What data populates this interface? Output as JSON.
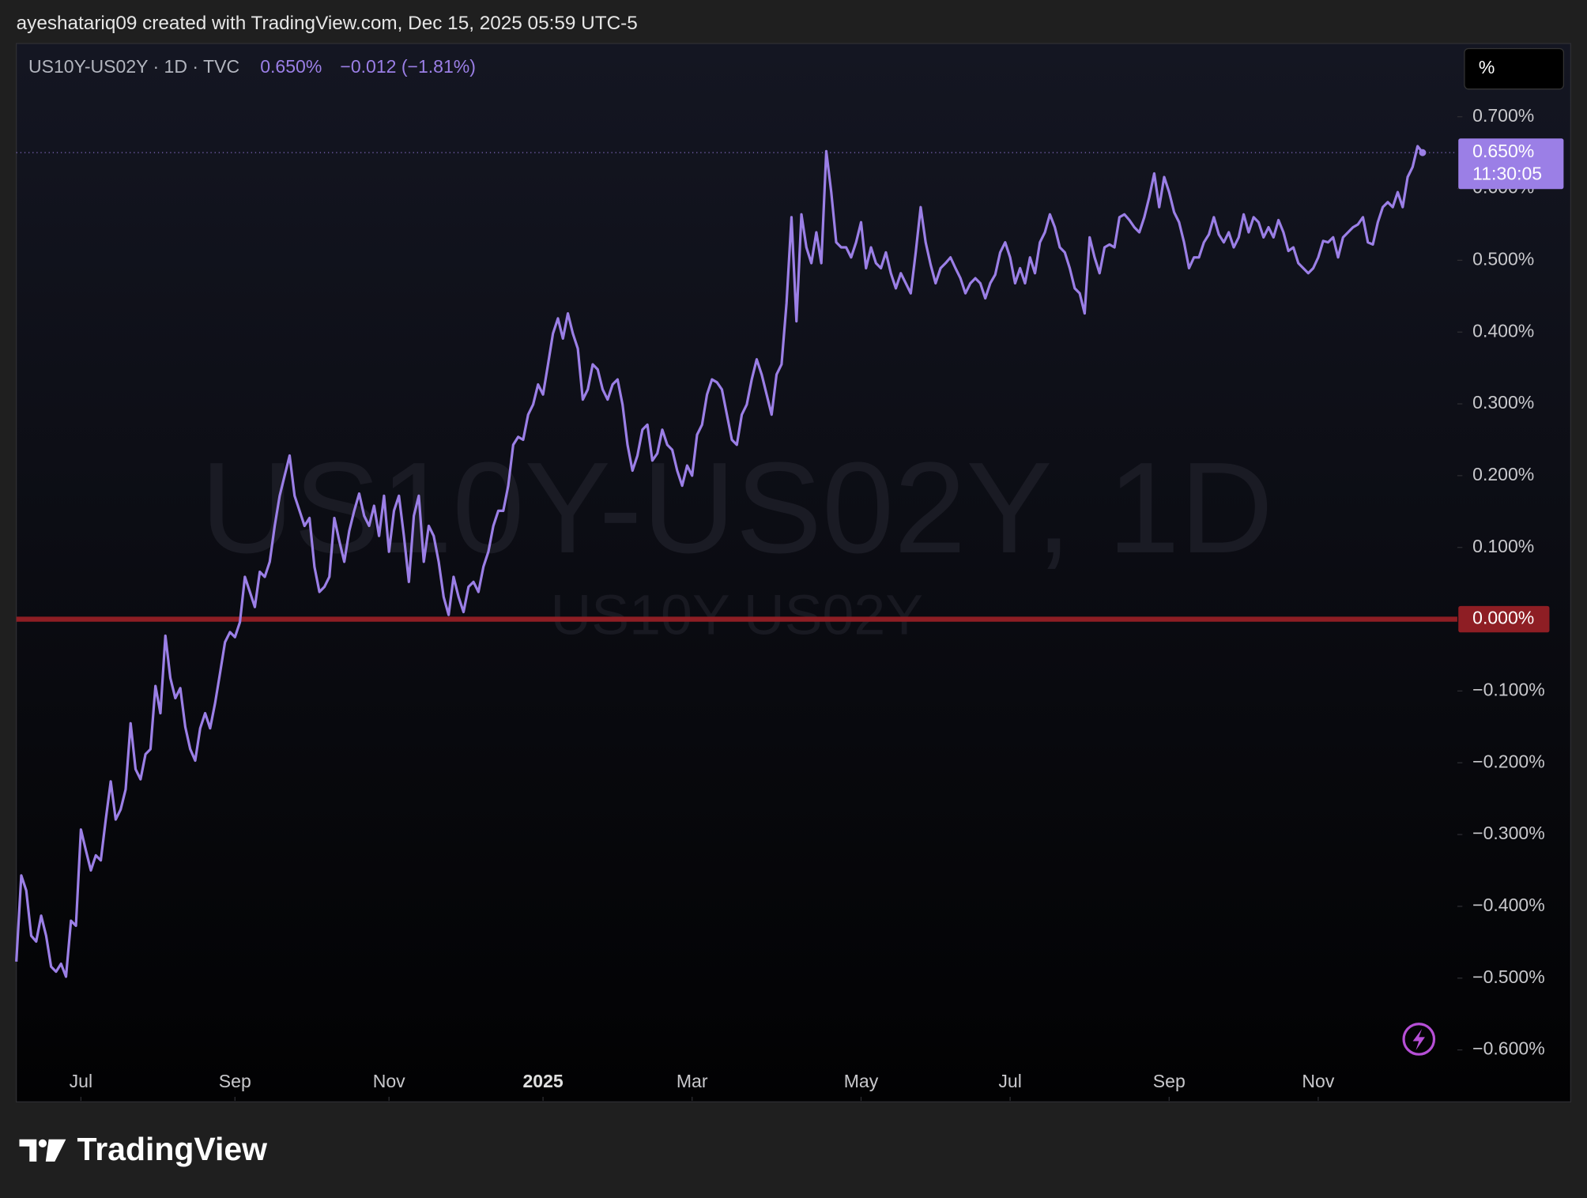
{
  "header": "ayeshatariq09 created with TradingView.com, Dec 15, 2025 05:59 UTC-5",
  "brand": "TradingView",
  "unit_button": "%",
  "chart_data": {
    "type": "line",
    "legend": "US10Y-US02Y · 1D · TVC",
    "change_label": "−0.012 (−1.81%)",
    "watermark": "US10Y-US02Y, 1D",
    "series": [
      {
        "name": "US10Y-US02Y",
        "color": "#9b7fe6",
        "values": [
          -0.477,
          -0.357,
          -0.378,
          -0.441,
          -0.449,
          -0.413,
          -0.441,
          -0.484,
          -0.491,
          -0.48,
          -0.498,
          -0.42,
          -0.427,
          -0.293,
          -0.322,
          -0.35,
          -0.329,
          -0.336,
          -0.279,
          -0.226,
          -0.279,
          -0.265,
          -0.237,
          -0.145,
          -0.209,
          -0.223,
          -0.188,
          -0.181,
          -0.093,
          -0.131,
          -0.023,
          -0.082,
          -0.11,
          -0.096,
          -0.15,
          -0.181,
          -0.197,
          -0.152,
          -0.131,
          -0.152,
          -0.117,
          -0.075,
          -0.032,
          -0.018,
          -0.025,
          -0.004,
          0.059,
          0.038,
          0.017,
          0.066,
          0.059,
          0.08,
          0.13,
          0.172,
          0.2,
          0.228,
          0.172,
          0.151,
          0.13,
          0.141,
          0.073,
          0.038,
          0.045,
          0.059,
          0.141,
          0.109,
          0.08,
          0.123,
          0.151,
          0.175,
          0.144,
          0.13,
          0.158,
          0.116,
          0.172,
          0.094,
          0.151,
          0.172,
          0.116,
          0.052,
          0.144,
          0.172,
          0.08,
          0.13,
          0.116,
          0.08,
          0.031,
          0.006,
          0.059,
          0.031,
          0.01,
          0.045,
          0.052,
          0.038,
          0.073,
          0.094,
          0.13,
          0.151,
          0.151,
          0.186,
          0.243,
          0.254,
          0.25,
          0.285,
          0.299,
          0.327,
          0.313,
          0.355,
          0.398,
          0.419,
          0.391,
          0.426,
          0.398,
          0.377,
          0.306,
          0.32,
          0.355,
          0.348,
          0.32,
          0.306,
          0.327,
          0.334,
          0.299,
          0.243,
          0.207,
          0.228,
          0.264,
          0.271,
          0.221,
          0.231,
          0.264,
          0.243,
          0.236,
          0.207,
          0.186,
          0.214,
          0.2,
          0.257,
          0.271,
          0.313,
          0.334,
          0.33,
          0.32,
          0.285,
          0.25,
          0.243,
          0.285,
          0.299,
          0.334,
          0.362,
          0.341,
          0.313,
          0.285,
          0.341,
          0.355,
          0.44,
          0.56,
          0.415,
          0.564,
          0.518,
          0.496,
          0.539,
          0.496,
          0.652,
          0.595,
          0.525,
          0.518,
          0.518,
          0.504,
          0.525,
          0.553,
          0.489,
          0.518,
          0.496,
          0.489,
          0.511,
          0.482,
          0.461,
          0.482,
          0.468,
          0.454,
          0.511,
          0.574,
          0.525,
          0.494,
          0.468,
          0.489,
          0.496,
          0.504,
          0.489,
          0.475,
          0.454,
          0.468,
          0.475,
          0.468,
          0.447,
          0.468,
          0.48,
          0.511,
          0.525,
          0.504,
          0.468,
          0.489,
          0.468,
          0.504,
          0.482,
          0.525,
          0.539,
          0.564,
          0.546,
          0.518,
          0.511,
          0.489,
          0.461,
          0.454,
          0.426,
          0.532,
          0.504,
          0.482,
          0.518,
          0.522,
          0.518,
          0.56,
          0.564,
          0.556,
          0.546,
          0.539,
          0.56,
          0.588,
          0.621,
          0.574,
          0.616,
          0.595,
          0.567,
          0.553,
          0.525,
          0.489,
          0.504,
          0.504,
          0.525,
          0.536,
          0.56,
          0.536,
          0.525,
          0.539,
          0.518,
          0.532,
          0.564,
          0.539,
          0.56,
          0.553,
          0.532,
          0.546,
          0.532,
          0.556,
          0.539,
          0.513,
          0.518,
          0.496,
          0.489,
          0.482,
          0.489,
          0.504,
          0.527,
          0.525,
          0.532,
          0.504,
          0.532,
          0.539,
          0.546,
          0.55,
          0.56,
          0.525,
          0.522,
          0.553,
          0.574,
          0.581,
          0.574,
          0.595,
          0.574,
          0.616,
          0.63,
          0.659,
          0.65
        ]
      }
    ],
    "xlim": [
      0,
      290
    ],
    "xticks": [
      {
        "value": 13,
        "label": "Jul"
      },
      {
        "value": 44,
        "label": "Sep"
      },
      {
        "value": 75,
        "label": "Nov"
      },
      {
        "value": 106,
        "label": "2025",
        "bold": true
      },
      {
        "value": 136,
        "label": "Mar"
      },
      {
        "value": 170,
        "label": "May"
      },
      {
        "value": 200,
        "label": "Jul"
      },
      {
        "value": 232,
        "label": "Sep"
      },
      {
        "value": 262,
        "label": "Nov"
      }
    ],
    "ylim": [
      -0.671,
      0.802
    ],
    "yticks": [
      {
        "value": 0.7,
        "label": "0.700%"
      },
      {
        "value": 0.6,
        "label": "0.600%"
      },
      {
        "value": 0.5,
        "label": "0.500%"
      },
      {
        "value": 0.4,
        "label": "0.400%"
      },
      {
        "value": 0.3,
        "label": "0.300%"
      },
      {
        "value": 0.2,
        "label": "0.200%"
      },
      {
        "value": 0.1,
        "label": "0.100%"
      },
      {
        "value": -0.1,
        "label": "−0.100%"
      },
      {
        "value": -0.2,
        "label": "−0.200%"
      },
      {
        "value": -0.3,
        "label": "−0.300%"
      },
      {
        "value": -0.4,
        "label": "−0.400%"
      },
      {
        "value": -0.5,
        "label": "−0.500%"
      },
      {
        "value": -0.6,
        "label": "−0.600%"
      }
    ],
    "grid": false,
    "hline": {
      "value": 0,
      "label": "0.000%",
      "color": "#8e1e24"
    },
    "last_price": {
      "value": 0.65,
      "label": "0.650%",
      "countdown": "11:30:05"
    }
  }
}
